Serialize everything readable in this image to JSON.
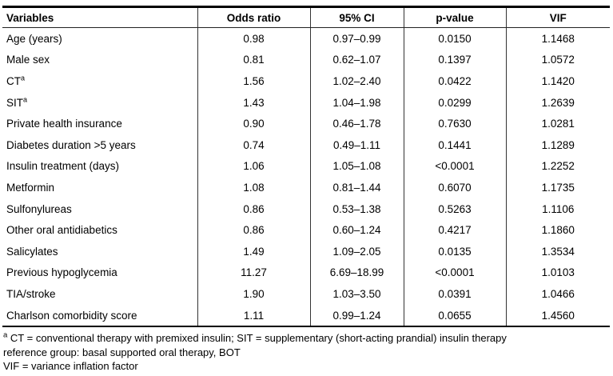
{
  "table": {
    "columns": [
      "Variables",
      "Odds ratio",
      "95% CI",
      "p-value",
      "VIF"
    ],
    "rows": [
      {
        "variable": "Age (years)",
        "sup": "",
        "odds_ratio": "0.98",
        "ci": "0.97–0.99",
        "p_value": "0.0150",
        "vif": "1.1468"
      },
      {
        "variable": "Male sex",
        "sup": "",
        "odds_ratio": "0.81",
        "ci": "0.62–1.07",
        "p_value": "0.1397",
        "vif": "1.0572"
      },
      {
        "variable": "CT",
        "sup": "a",
        "odds_ratio": "1.56",
        "ci": "1.02–2.40",
        "p_value": "0.0422",
        "vif": "1.1420"
      },
      {
        "variable": "SIT",
        "sup": "a",
        "odds_ratio": "1.43",
        "ci": "1.04–1.98",
        "p_value": "0.0299",
        "vif": "1.2639"
      },
      {
        "variable": "Private health insurance",
        "sup": "",
        "odds_ratio": "0.90",
        "ci": "0.46–1.78",
        "p_value": "0.7630",
        "vif": "1.0281"
      },
      {
        "variable": "Diabetes duration >5 years",
        "sup": "",
        "odds_ratio": "0.74",
        "ci": "0.49–1.11",
        "p_value": "0.1441",
        "vif": "1.1289"
      },
      {
        "variable": "Insulin treatment (days)",
        "sup": "",
        "odds_ratio": "1.06",
        "ci": "1.05–1.08",
        "p_value": "<0.0001",
        "vif": "1.2252"
      },
      {
        "variable": "Metformin",
        "sup": "",
        "odds_ratio": "1.08",
        "ci": "0.81–1.44",
        "p_value": "0.6070",
        "vif": "1.1735"
      },
      {
        "variable": "Sulfonylureas",
        "sup": "",
        "odds_ratio": "0.86",
        "ci": "0.53–1.38",
        "p_value": "0.5263",
        "vif": "1.1106"
      },
      {
        "variable": "Other oral antidiabetics",
        "sup": "",
        "odds_ratio": "0.86",
        "ci": "0.60–1.24",
        "p_value": "0.4217",
        "vif": "1.1860"
      },
      {
        "variable": "Salicylates",
        "sup": "",
        "odds_ratio": "1.49",
        "ci": "1.09–2.05",
        "p_value": "0.0135",
        "vif": "1.3534"
      },
      {
        "variable": "Previous hypoglycemia",
        "sup": "",
        "odds_ratio": "11.27",
        "ci": "6.69–18.99",
        "p_value": "<0.0001",
        "vif": "1.0103"
      },
      {
        "variable": "TIA/stroke",
        "sup": "",
        "odds_ratio": "1.90",
        "ci": "1.03–3.50",
        "p_value": "0.0391",
        "vif": "1.0466"
      },
      {
        "variable": "Charlson comorbidity score",
        "sup": "",
        "odds_ratio": "1.11",
        "ci": "0.99–1.24",
        "p_value": "0.0655",
        "vif": "1.4560"
      }
    ]
  },
  "footnote": {
    "sup": "a",
    "line1": "CT = conventional therapy with premixed insulin; SIT = supplementary (short-acting prandial) insulin therapy",
    "line2": "reference group: basal supported oral therapy, BOT",
    "line3": "VIF = variance inflation factor"
  },
  "colors": {
    "text": "#000000",
    "border_heavy": "#000000",
    "border_light": "#333333",
    "background": "#ffffff"
  }
}
